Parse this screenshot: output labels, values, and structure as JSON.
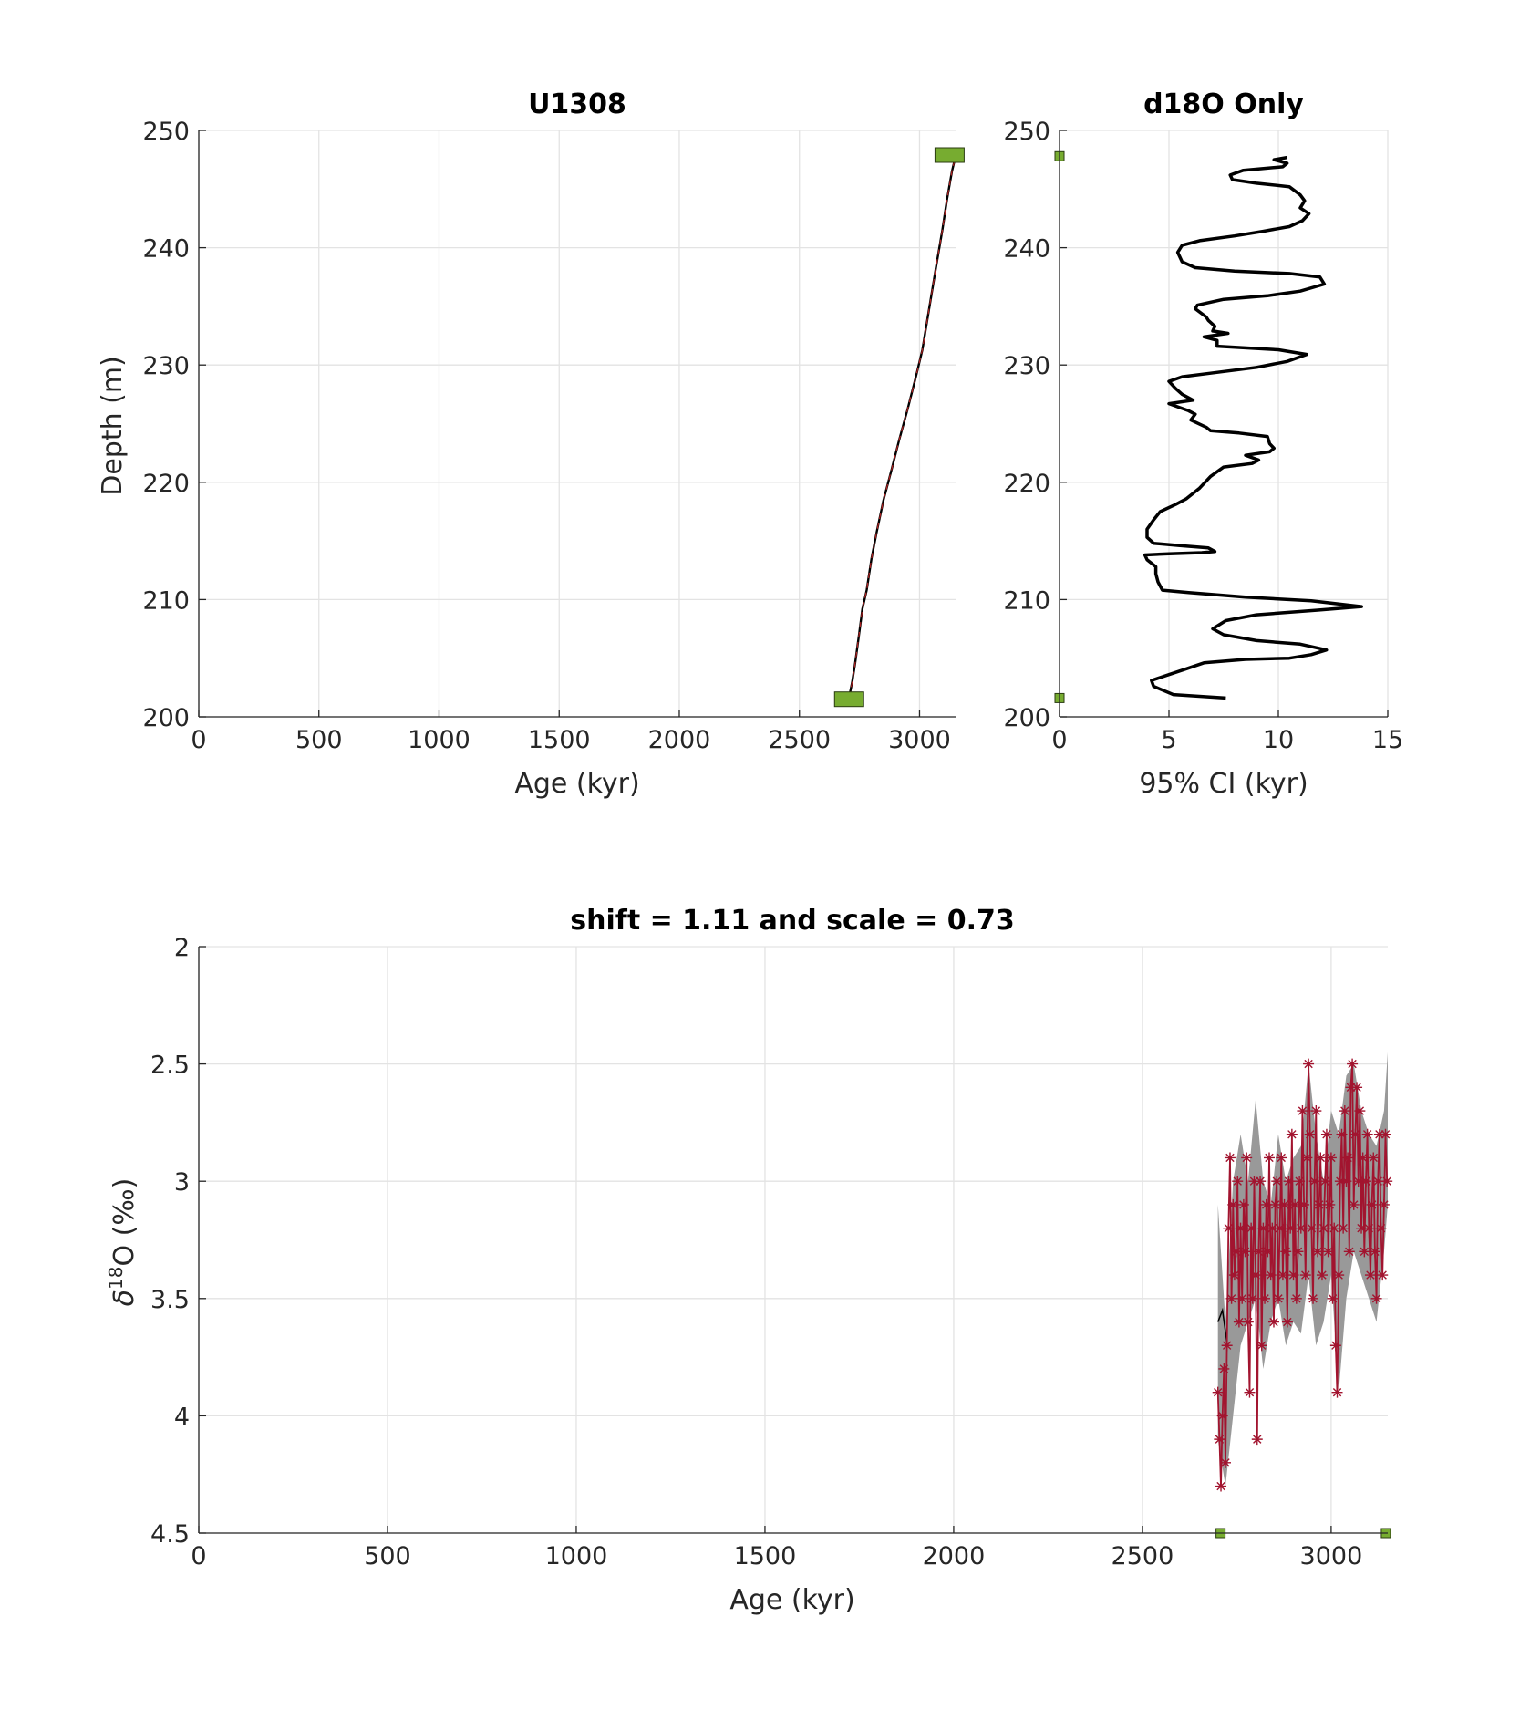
{
  "chart_data": [
    {
      "type": "line",
      "title": "U1308",
      "xlabel": "Age (kyr)",
      "ylabel": "Depth (m)",
      "xlim": [
        0,
        3150
      ],
      "ylim": [
        200,
        250
      ],
      "xticks": [
        0,
        500,
        1000,
        1500,
        2000,
        2500,
        3000
      ],
      "yticks": [
        200,
        210,
        220,
        230,
        240,
        250
      ],
      "grid": true,
      "series": [
        {
          "kind": "age-depth-line",
          "color": "#000000",
          "overlay_color": "#b22222",
          "points": [
            [
              2707,
              201.7
            ],
            [
              2720,
              203.0
            ],
            [
              2732,
              204.6
            ],
            [
              2748,
              207.0
            ],
            [
              2762,
              209.2
            ],
            [
              2780,
              210.8
            ],
            [
              2800,
              213.5
            ],
            [
              2822,
              215.8
            ],
            [
              2850,
              218.5
            ],
            [
              2885,
              221.2
            ],
            [
              2915,
              223.6
            ],
            [
              2950,
              226.2
            ],
            [
              2985,
              229.0
            ],
            [
              3012,
              231.3
            ],
            [
              3040,
              234.8
            ],
            [
              3070,
              238.5
            ],
            [
              3095,
              241.5
            ],
            [
              3115,
              244.2
            ],
            [
              3135,
              246.5
            ],
            [
              3150,
              247.8
            ]
          ]
        },
        {
          "kind": "tie-points",
          "color": "#77ac30",
          "points": [
            [
              2707,
              201.5
            ],
            [
              3125,
              247.9
            ]
          ]
        }
      ]
    },
    {
      "type": "line",
      "title": "d18O Only",
      "xlabel": "95% CI (kyr)",
      "ylabel": "",
      "xlim": [
        0,
        15
      ],
      "ylim": [
        200,
        250
      ],
      "xticks": [
        0,
        5,
        10,
        15
      ],
      "yticks": [
        200,
        210,
        220,
        230,
        240,
        250
      ],
      "grid": true,
      "series": [
        {
          "kind": "ci-profile",
          "color": "#000000",
          "points": [
            [
              7.6,
              201.6
            ],
            [
              5.2,
              201.9
            ],
            [
              4.3,
              202.6
            ],
            [
              4.2,
              203.1
            ],
            [
              5.0,
              203.6
            ],
            [
              5.8,
              204.1
            ],
            [
              6.6,
              204.6
            ],
            [
              8.5,
              204.9
            ],
            [
              10.5,
              205.0
            ],
            [
              11.5,
              205.3
            ],
            [
              12.2,
              205.7
            ],
            [
              11.0,
              206.2
            ],
            [
              9.0,
              206.5
            ],
            [
              7.5,
              207.0
            ],
            [
              7.0,
              207.5
            ],
            [
              7.6,
              208.2
            ],
            [
              9.0,
              208.7
            ],
            [
              11.8,
              209.1
            ],
            [
              13.8,
              209.4
            ],
            [
              11.5,
              209.9
            ],
            [
              8.5,
              210.2
            ],
            [
              5.9,
              210.6
            ],
            [
              4.7,
              210.8
            ],
            [
              4.5,
              211.5
            ],
            [
              4.4,
              212.2
            ],
            [
              4.4,
              212.8
            ],
            [
              4.0,
              213.4
            ],
            [
              3.9,
              213.8
            ],
            [
              5.0,
              213.9
            ],
            [
              6.5,
              214.0
            ],
            [
              7.1,
              214.1
            ],
            [
              6.8,
              214.4
            ],
            [
              5.5,
              214.6
            ],
            [
              4.3,
              214.8
            ],
            [
              4.0,
              215.3
            ],
            [
              4.0,
              216.0
            ],
            [
              4.3,
              216.8
            ],
            [
              4.6,
              217.5
            ],
            [
              5.3,
              218.1
            ],
            [
              5.8,
              218.6
            ],
            [
              6.4,
              219.5
            ],
            [
              6.9,
              220.5
            ],
            [
              7.5,
              221.3
            ],
            [
              8.8,
              221.6
            ],
            [
              9.1,
              221.9
            ],
            [
              8.5,
              222.3
            ],
            [
              9.6,
              222.6
            ],
            [
              9.8,
              222.9
            ],
            [
              9.6,
              223.3
            ],
            [
              9.5,
              223.9
            ],
            [
              8.2,
              224.2
            ],
            [
              6.9,
              224.4
            ],
            [
              6.7,
              224.7
            ],
            [
              6.0,
              225.3
            ],
            [
              6.2,
              225.8
            ],
            [
              5.9,
              226.1
            ],
            [
              5.0,
              226.7
            ],
            [
              6.1,
              227.0
            ],
            [
              5.6,
              227.5
            ],
            [
              5.3,
              228.0
            ],
            [
              5.0,
              228.6
            ],
            [
              5.6,
              229.0
            ],
            [
              6.9,
              229.3
            ],
            [
              9.0,
              229.8
            ],
            [
              10.4,
              230.3
            ],
            [
              11.3,
              230.9
            ],
            [
              10.0,
              231.3
            ],
            [
              7.2,
              231.6
            ],
            [
              7.2,
              232.1
            ],
            [
              6.6,
              232.4
            ],
            [
              7.7,
              232.7
            ],
            [
              7.0,
              232.9
            ],
            [
              7.1,
              233.3
            ],
            [
              6.8,
              233.8
            ],
            [
              6.7,
              234.1
            ],
            [
              6.2,
              234.8
            ],
            [
              6.3,
              235.1
            ],
            [
              7.5,
              235.6
            ],
            [
              9.5,
              235.9
            ],
            [
              11.0,
              236.3
            ],
            [
              12.1,
              236.9
            ],
            [
              11.9,
              237.5
            ],
            [
              10.5,
              237.8
            ],
            [
              8.0,
              238.0
            ],
            [
              6.2,
              238.3
            ],
            [
              5.6,
              238.8
            ],
            [
              5.4,
              239.6
            ],
            [
              5.6,
              240.2
            ],
            [
              6.4,
              240.6
            ],
            [
              8.0,
              241.0
            ],
            [
              9.3,
              241.4
            ],
            [
              10.5,
              241.8
            ],
            [
              11.1,
              242.3
            ],
            [
              11.4,
              242.9
            ],
            [
              11.0,
              243.4
            ],
            [
              11.2,
              244.0
            ],
            [
              11.0,
              244.5
            ],
            [
              10.5,
              245.2
            ],
            [
              9.0,
              245.5
            ],
            [
              7.9,
              245.8
            ],
            [
              7.8,
              246.2
            ],
            [
              8.4,
              246.6
            ],
            [
              10.2,
              246.9
            ],
            [
              10.4,
              247.2
            ],
            [
              9.8,
              247.5
            ],
            [
              10.4,
              247.7
            ]
          ]
        },
        {
          "kind": "tie-points",
          "color": "#77ac30",
          "points": [
            [
              0,
              201.6
            ],
            [
              0,
              247.8
            ]
          ]
        }
      ]
    },
    {
      "type": "scatter",
      "title": "shift = 1.11 and scale = 0.73",
      "xlabel": "Age (kyr)",
      "ylabel": "δ18O (‰)",
      "ylabel_base": "δ",
      "ylabel_sup": "18",
      "ylabel_rest": "O (‰)",
      "y_reversed": true,
      "xlim": [
        0,
        3150
      ],
      "ylim": [
        2,
        4.5
      ],
      "xticks": [
        0,
        500,
        1000,
        1500,
        2000,
        2500,
        3000
      ],
      "ytick_labels": [
        "2",
        "2.5",
        "3",
        "3.5",
        "4",
        "4.5"
      ],
      "yticks": [
        2,
        2.5,
        3,
        3.5,
        4,
        4.5
      ],
      "grid": true,
      "band": {
        "color": "#999999",
        "x": [
          2700,
          2720,
          2740,
          2760,
          2780,
          2800,
          2820,
          2840,
          2860,
          2880,
          2900,
          2920,
          2940,
          2960,
          2980,
          3000,
          3020,
          3040,
          3060,
          3080,
          3100,
          3120,
          3140,
          3150
        ],
        "lower": [
          3.1,
          3.6,
          3.0,
          2.8,
          3.0,
          2.65,
          3.0,
          3.1,
          2.8,
          3.0,
          2.9,
          2.85,
          2.5,
          2.8,
          3.0,
          2.7,
          2.8,
          2.55,
          2.5,
          2.7,
          2.8,
          2.85,
          2.7,
          2.45
        ],
        "upper": [
          4.1,
          4.3,
          4.0,
          3.7,
          3.6,
          3.5,
          3.8,
          3.6,
          3.5,
          3.7,
          3.6,
          3.65,
          3.4,
          3.7,
          3.6,
          3.4,
          3.9,
          3.5,
          3.3,
          3.4,
          3.5,
          3.6,
          3.3,
          3.1
        ]
      },
      "median": {
        "color": "#000000",
        "x": [
          2700,
          2712,
          2725
        ],
        "y": [
          3.6,
          3.55,
          3.7
        ]
      },
      "series": [
        {
          "kind": "d18o-record",
          "color": "#a2142f",
          "x": [
            2700,
            2704,
            2708,
            2712,
            2716,
            2720,
            2724,
            2728,
            2732,
            2736,
            2740,
            2744,
            2748,
            2752,
            2756,
            2760,
            2764,
            2768,
            2772,
            2776,
            2780,
            2784,
            2788,
            2792,
            2796,
            2800,
            2804,
            2808,
            2812,
            2816,
            2820,
            2824,
            2828,
            2832,
            2836,
            2840,
            2844,
            2848,
            2852,
            2856,
            2860,
            2864,
            2868,
            2872,
            2876,
            2880,
            2884,
            2888,
            2892,
            2896,
            2900,
            2904,
            2908,
            2912,
            2916,
            2920,
            2924,
            2928,
            2932,
            2936,
            2940,
            2944,
            2948,
            2952,
            2956,
            2960,
            2964,
            2968,
            2972,
            2976,
            2980,
            2984,
            2988,
            2992,
            2996,
            3000,
            3004,
            3008,
            3012,
            3016,
            3020,
            3024,
            3028,
            3032,
            3036,
            3040,
            3044,
            3048,
            3052,
            3056,
            3060,
            3064,
            3068,
            3072,
            3076,
            3080,
            3084,
            3088,
            3092,
            3096,
            3100,
            3104,
            3108,
            3112,
            3116,
            3120,
            3124,
            3128,
            3132,
            3136,
            3140,
            3144,
            3148
          ],
          "y": [
            3.9,
            4.1,
            4.3,
            4.0,
            3.8,
            4.2,
            3.7,
            3.2,
            2.9,
            3.5,
            3.1,
            3.4,
            3.3,
            3.0,
            3.6,
            3.2,
            3.5,
            3.1,
            3.3,
            2.9,
            3.6,
            3.9,
            3.2,
            3.5,
            3.0,
            3.4,
            4.1,
            3.3,
            3.0,
            3.7,
            3.2,
            3.5,
            3.1,
            3.3,
            2.9,
            3.4,
            3.2,
            3.6,
            3.1,
            3.0,
            3.5,
            3.2,
            2.9,
            3.4,
            3.1,
            3.3,
            3.6,
            3.0,
            3.2,
            2.8,
            3.4,
            3.1,
            3.5,
            3.3,
            3.0,
            3.2,
            2.7,
            3.1,
            3.4,
            2.9,
            2.5,
            2.8,
            3.2,
            3.5,
            3.0,
            2.7,
            3.3,
            3.1,
            2.9,
            3.4,
            3.2,
            3.0,
            2.8,
            3.3,
            3.1,
            2.9,
            3.5,
            3.2,
            3.7,
            3.9,
            3.4,
            3.0,
            2.8,
            3.2,
            2.7,
            3.0,
            2.9,
            3.3,
            2.6,
            2.5,
            3.1,
            2.8,
            2.6,
            3.0,
            2.7,
            3.2,
            2.9,
            3.3,
            3.0,
            2.8,
            3.2,
            3.4,
            3.1,
            2.9,
            3.3,
            3.5,
            3.0,
            2.8,
            3.2,
            3.4,
            3.1,
            2.8,
            3.0
          ]
        },
        {
          "kind": "tie-points",
          "color": "#77ac30",
          "x": [
            2707,
            3145
          ],
          "y": [
            4.5,
            4.5
          ]
        }
      ]
    }
  ]
}
